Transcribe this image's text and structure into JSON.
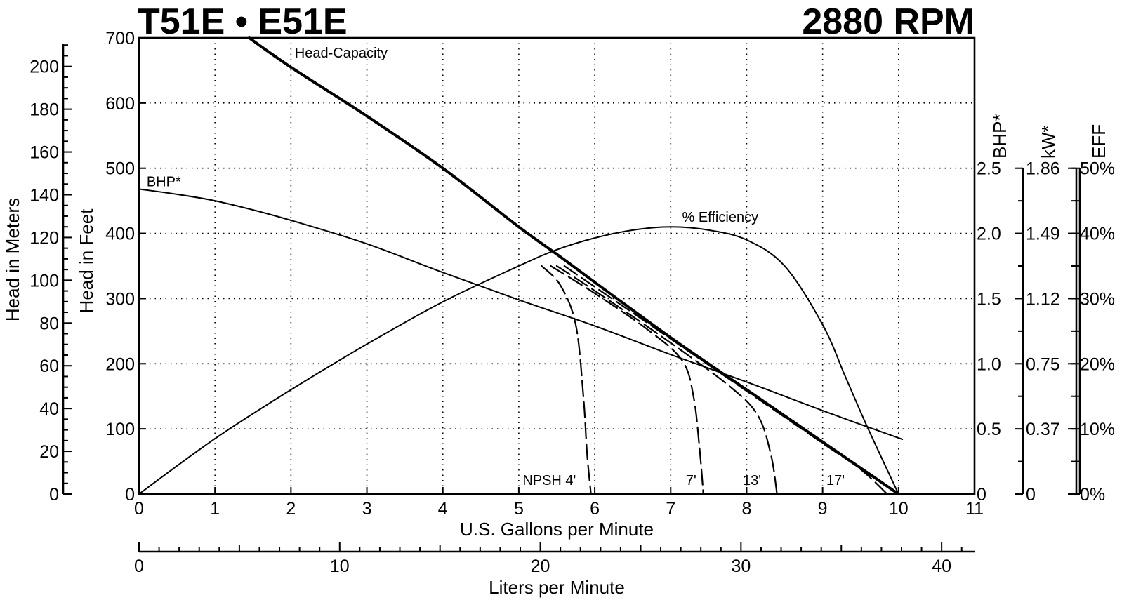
{
  "chart_data": {
    "type": "line",
    "title": "T51E • E51E",
    "subtitle": "2880 RPM",
    "xlabel": "U.S. Gallons per Minute",
    "xlabel_secondary": "Liters per Minute",
    "ylabel": "Head in Feet",
    "ylabel_meters": "Head in Meters",
    "ylabel_bhp": "BHP*",
    "ylabel_kw": "kW*",
    "ylabel_eff": "EFF",
    "xlim": [
      0,
      11
    ],
    "ylim": [
      0,
      700
    ],
    "grid": true,
    "x_ticks": [
      "0",
      "1",
      "2",
      "3",
      "4",
      "5",
      "6",
      "7",
      "8",
      "9",
      "10",
      "11"
    ],
    "y_ticks": [
      "0",
      "100",
      "200",
      "300",
      "400",
      "500",
      "600",
      "700"
    ],
    "lpm_ticks": [
      {
        "value": 0,
        "label": "0"
      },
      {
        "value": 10,
        "label": "10"
      },
      {
        "value": 20,
        "label": "20"
      },
      {
        "value": 30,
        "label": "30"
      },
      {
        "value": 40,
        "label": "40"
      }
    ],
    "meter_ticks": [
      {
        "value": 0,
        "label": "0"
      },
      {
        "value": 20,
        "label": "20"
      },
      {
        "value": 40,
        "label": "40"
      },
      {
        "value": 60,
        "label": "60"
      },
      {
        "value": 80,
        "label": "80"
      },
      {
        "value": 100,
        "label": "100"
      },
      {
        "value": 120,
        "label": "120"
      },
      {
        "value": 140,
        "label": "140"
      },
      {
        "value": 160,
        "label": "160"
      },
      {
        "value": 180,
        "label": "180"
      },
      {
        "value": 200,
        "label": "200"
      }
    ],
    "bhp_ticks": [
      {
        "value": 0,
        "label": "0"
      },
      {
        "value": 0.5,
        "label": "0.5"
      },
      {
        "value": 1.0,
        "label": "1.0"
      },
      {
        "value": 1.5,
        "label": "1.5"
      },
      {
        "value": 2.0,
        "label": "2.0"
      },
      {
        "value": 2.5,
        "label": "2.5"
      }
    ],
    "kw_ticks": [
      {
        "value": 0,
        "label": "0"
      },
      {
        "value": 0.5,
        "label": "0.37"
      },
      {
        "value": 1.0,
        "label": "0.75"
      },
      {
        "value": 1.5,
        "label": "1.12"
      },
      {
        "value": 2.0,
        "label": "1.49"
      },
      {
        "value": 2.5,
        "label": "1.86"
      }
    ],
    "eff_ticks": [
      {
        "value": 0,
        "label": "0%"
      },
      {
        "value": 0.5,
        "label": "10%"
      },
      {
        "value": 1.0,
        "label": "20%"
      },
      {
        "value": 1.5,
        "label": "30%"
      },
      {
        "value": 2.0,
        "label": "40%"
      },
      {
        "value": 2.5,
        "label": "50%"
      }
    ],
    "series": [
      {
        "name": "Head-Capacity",
        "axis": "feet",
        "style": "bold",
        "x": [
          1.45,
          2,
          3,
          4,
          5,
          5.5,
          6,
          7,
          8,
          9,
          9.5,
          10
        ],
        "y": [
          700,
          655,
          580,
          500,
          410,
          368,
          325,
          240,
          160,
          80,
          40,
          0
        ]
      },
      {
        "name": "BHP*",
        "axis": "bhp",
        "style": "thin",
        "x": [
          0,
          0.5,
          1,
          1.5,
          2,
          3,
          4,
          5,
          6,
          7,
          8,
          9,
          10.05
        ],
        "y": [
          2.34,
          2.3,
          2.25,
          2.18,
          2.1,
          1.92,
          1.7,
          1.49,
          1.29,
          1.07,
          0.86,
          0.64,
          0.42
        ]
      },
      {
        "name": "% Efficiency",
        "axis": "eff",
        "style": "thin",
        "x": [
          0,
          1,
          2,
          3,
          4,
          5,
          5.5,
          6,
          6.5,
          7,
          7.5,
          8,
          8.5,
          9,
          9.3,
          9.6,
          10
        ],
        "y": [
          0,
          8.5,
          16,
          23,
          29.5,
          35,
          37.5,
          39.3,
          40.5,
          41,
          40.5,
          39,
          35,
          26,
          18,
          10,
          0
        ]
      },
      {
        "name": "NPSH 4'",
        "axis": "feet",
        "style": "dashed",
        "x": [
          5.3,
          5.55,
          5.75,
          5.85,
          5.9,
          5.95
        ],
        "y": [
          350,
          320,
          260,
          150,
          60,
          0
        ]
      },
      {
        "name": "7'",
        "axis": "feet",
        "style": "dashed",
        "x": [
          5.42,
          6,
          6.7,
          7.15,
          7.3,
          7.38,
          7.43
        ],
        "y": [
          350,
          308,
          252,
          205,
          150,
          70,
          0
        ]
      },
      {
        "name": "13'",
        "axis": "feet",
        "style": "dashed",
        "x": [
          5.5,
          6,
          7,
          7.8,
          8.15,
          8.32,
          8.4
        ],
        "y": [
          350,
          312,
          232,
          163,
          120,
          60,
          0
        ]
      },
      {
        "name": "17'",
        "axis": "feet",
        "style": "dashed",
        "x": [
          5.6,
          6,
          7,
          8,
          9,
          9.5,
          9.85
        ],
        "y": [
          350,
          318,
          238,
          158,
          78,
          38,
          0
        ]
      }
    ],
    "annotations": [
      {
        "text": "Head-Capacity",
        "x": 2.05,
        "y": 670
      },
      {
        "text": "BHP*",
        "x": 0.1,
        "y": 472
      },
      {
        "text": "% Efficiency",
        "x": 7.15,
        "y": 418
      },
      {
        "text": "NPSH 4'",
        "x": 5.05,
        "y": 14
      },
      {
        "text": "7'",
        "x": 7.2,
        "y": 14
      },
      {
        "text": "13'",
        "x": 7.95,
        "y": 14
      },
      {
        "text": "17'",
        "x": 9.05,
        "y": 14
      }
    ]
  }
}
